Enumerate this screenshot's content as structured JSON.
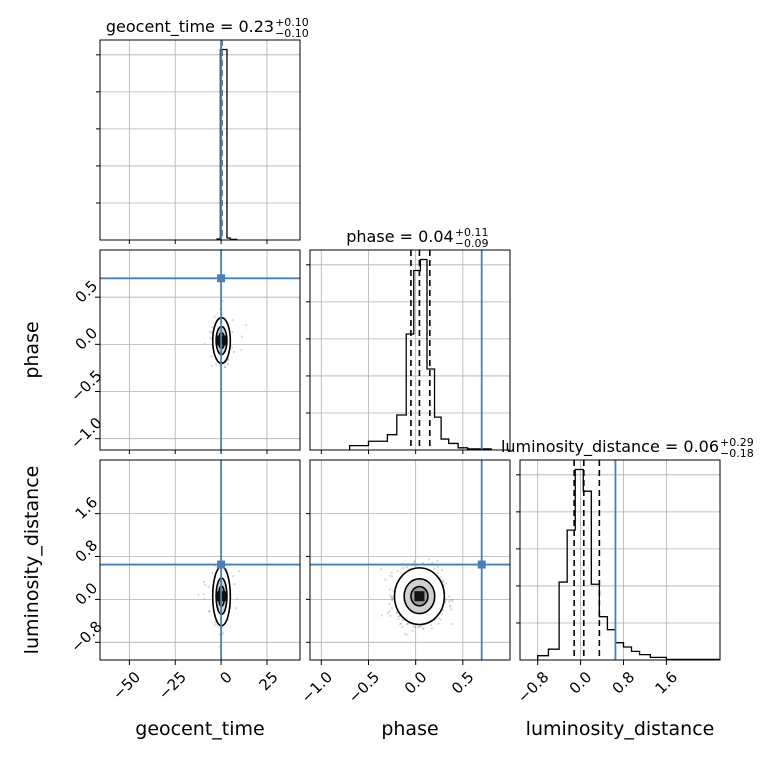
{
  "colors": {
    "truth": "#4682b4",
    "line": "#000000",
    "grid": "#b0b0b0",
    "scatter": "#8c8c8c",
    "contour_fill": "#9a9a9a"
  },
  "chart_data": {
    "type": "corner",
    "parameters": [
      "geocent_time",
      "phase",
      "luminosity_distance"
    ],
    "grid": true,
    "truths": {
      "geocent_time": 0.0,
      "phase": 0.7,
      "luminosity_distance": 0.65
    },
    "titles": [
      {
        "param": "geocent_time",
        "text": "geocent_time = 0.23",
        "plus": "+0.10",
        "minus": "−0.10"
      },
      {
        "param": "phase",
        "text": "phase = 0.04",
        "plus": "+0.11",
        "minus": "−0.09"
      },
      {
        "param": "luminosity_distance",
        "text": "luminosity_distance = 0.06",
        "plus": "+0.29",
        "minus": "−0.18"
      }
    ],
    "ranges": {
      "geocent_time": [
        -66,
        43
      ],
      "phase": [
        -1.12,
        1.0
      ],
      "luminosity_distance": [
        -1.13,
        2.6
      ]
    },
    "ticks": {
      "geocent_time": {
        "values": [
          -50,
          -25,
          0,
          25
        ],
        "labels": [
          "−50",
          "−25",
          "0",
          "25"
        ]
      },
      "phase": {
        "values": [
          -1.0,
          -0.5,
          0.0,
          0.5
        ],
        "labels": [
          "−1.0",
          "−0.5",
          "0.0",
          "0.5"
        ]
      },
      "luminosity_distance": {
        "values": [
          -0.8,
          0.0,
          0.8,
          1.6
        ],
        "labels": [
          "−0.8",
          "0.0",
          "0.8",
          "1.6"
        ]
      }
    },
    "histograms": {
      "geocent_time": {
        "quantiles": [
          0.13,
          0.23,
          0.33
        ],
        "bins": [
          {
            "x0": -2.2,
            "x1": -0.4,
            "count": 0.005
          },
          {
            "x0": -0.4,
            "x1": 1.4,
            "count": 0.97
          },
          {
            "x0": 1.4,
            "x1": 3.2,
            "count": 0.97
          },
          {
            "x0": 3.2,
            "x1": 5.0,
            "count": 0.01
          },
          {
            "x0": 5.0,
            "x1": 8.5,
            "count": 0.003
          }
        ]
      },
      "phase": {
        "quantiles": [
          -0.05,
          0.04,
          0.15
        ],
        "bins": [
          {
            "x0": -0.7,
            "x1": -0.5,
            "count": 0.02
          },
          {
            "x0": -0.5,
            "x1": -0.3,
            "count": 0.04
          },
          {
            "x0": -0.3,
            "x1": -0.2,
            "count": 0.07
          },
          {
            "x0": -0.2,
            "x1": -0.1,
            "count": 0.16
          },
          {
            "x0": -0.1,
            "x1": -0.02,
            "count": 0.53
          },
          {
            "x0": -0.02,
            "x1": 0.05,
            "count": 0.82
          },
          {
            "x0": 0.05,
            "x1": 0.12,
            "count": 0.87
          },
          {
            "x0": 0.12,
            "x1": 0.2,
            "count": 0.37
          },
          {
            "x0": 0.2,
            "x1": 0.27,
            "count": 0.15
          },
          {
            "x0": 0.27,
            "x1": 0.35,
            "count": 0.05
          },
          {
            "x0": 0.35,
            "x1": 0.45,
            "count": 0.03
          },
          {
            "x0": 0.45,
            "x1": 0.55,
            "count": 0.01
          },
          {
            "x0": 0.55,
            "x1": 0.8,
            "count": 0.005
          }
        ]
      },
      "luminosity_distance": {
        "quantiles": [
          -0.12,
          0.06,
          0.35
        ],
        "bins": [
          {
            "x0": -0.8,
            "x1": -0.6,
            "count": 0.02
          },
          {
            "x0": -0.6,
            "x1": -0.4,
            "count": 0.05
          },
          {
            "x0": -0.4,
            "x1": -0.25,
            "count": 0.36
          },
          {
            "x0": -0.25,
            "x1": -0.1,
            "count": 0.6
          },
          {
            "x0": -0.1,
            "x1": 0.05,
            "count": 0.88
          },
          {
            "x0": 0.05,
            "x1": 0.2,
            "count": 0.78
          },
          {
            "x0": 0.2,
            "x1": 0.35,
            "count": 0.35
          },
          {
            "x0": 0.35,
            "x1": 0.5,
            "count": 0.2
          },
          {
            "x0": 0.5,
            "x1": 0.65,
            "count": 0.14
          },
          {
            "x0": 0.65,
            "x1": 0.8,
            "count": 0.08
          },
          {
            "x0": 0.8,
            "x1": 0.95,
            "count": 0.06
          },
          {
            "x0": 0.95,
            "x1": 1.1,
            "count": 0.04
          },
          {
            "x0": 1.1,
            "x1": 1.3,
            "count": 0.025
          },
          {
            "x0": 1.3,
            "x1": 1.6,
            "count": 0.012
          },
          {
            "x0": 1.6,
            "x1": 2.6,
            "count": 0.003
          }
        ]
      }
    },
    "pairs": [
      {
        "x": "geocent_time",
        "y": "phase",
        "center": [
          0.23,
          0.04
        ],
        "spread": [
          1.5,
          0.11
        ],
        "n_points": 450
      },
      {
        "x": "geocent_time",
        "y": "luminosity_distance",
        "center": [
          0.23,
          0.06
        ],
        "spread": [
          1.5,
          0.25
        ],
        "n_points": 450
      },
      {
        "x": "phase",
        "y": "luminosity_distance",
        "center": [
          0.04,
          0.06
        ],
        "spread": [
          0.12,
          0.24
        ],
        "n_points": 900
      }
    ]
  }
}
